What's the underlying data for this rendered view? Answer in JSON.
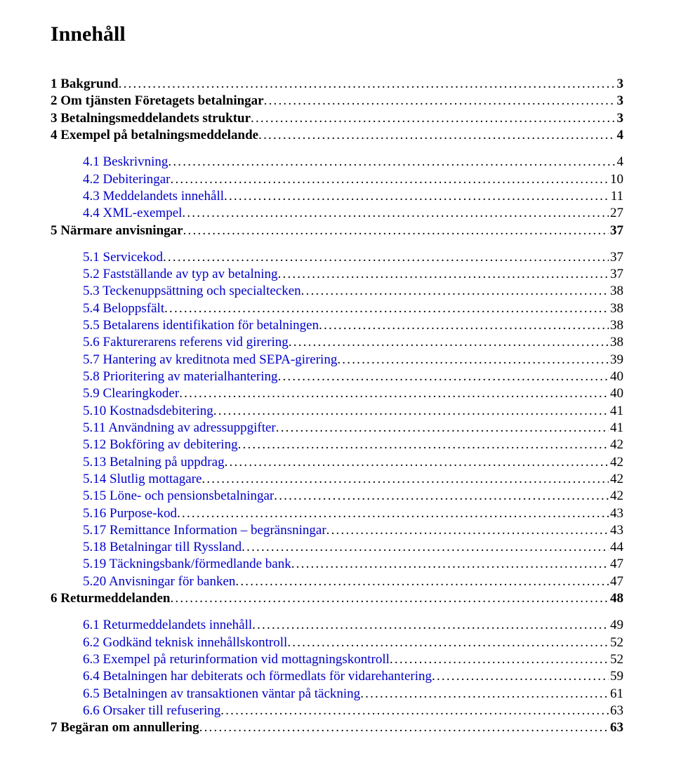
{
  "title": "Innehåll",
  "colors": {
    "background": "#ffffff",
    "text": "#000000",
    "link": "#0000cc"
  },
  "font": {
    "family": "Times New Roman",
    "title_size_pt": 22,
    "body_size_pt": 14
  },
  "toc": [
    {
      "level": 1,
      "bold": true,
      "link": false,
      "gap_before": true,
      "label": "1 Bakgrund",
      "page": "3"
    },
    {
      "level": 1,
      "bold": true,
      "link": false,
      "gap_before": false,
      "label": "2 Om tjänsten Företagets betalningar",
      "page": "3"
    },
    {
      "level": 1,
      "bold": true,
      "link": false,
      "gap_before": false,
      "label": "3 Betalningsmeddelandets struktur",
      "page": "3"
    },
    {
      "level": 1,
      "bold": true,
      "link": false,
      "gap_before": false,
      "label": "4 Exempel på betalningsmeddelande",
      "page": "4"
    },
    {
      "level": 2,
      "bold": false,
      "link": true,
      "gap_before": true,
      "label": "4.1 Beskrivning",
      "page": "4"
    },
    {
      "level": 2,
      "bold": false,
      "link": true,
      "gap_before": false,
      "label": "4.2 Debiteringar",
      "page": "10"
    },
    {
      "level": 2,
      "bold": false,
      "link": true,
      "gap_before": false,
      "label": "4.3 Meddelandets innehåll",
      "page": "11"
    },
    {
      "level": 2,
      "bold": false,
      "link": true,
      "gap_before": false,
      "label": "4.4 XML-exempel",
      "page": "27"
    },
    {
      "level": 1,
      "bold": true,
      "link": false,
      "gap_before": false,
      "label": "5 Närmare anvisningar",
      "page": "37"
    },
    {
      "level": 2,
      "bold": false,
      "link": true,
      "gap_before": true,
      "label": "5.1 Servicekod",
      "page": "37"
    },
    {
      "level": 2,
      "bold": false,
      "link": true,
      "gap_before": false,
      "label": "5.2 Fastställande av typ av betalning",
      "page": "37"
    },
    {
      "level": 2,
      "bold": false,
      "link": true,
      "gap_before": false,
      "label": "5.3 Teckenuppsättning och specialtecken",
      "page": "38"
    },
    {
      "level": 2,
      "bold": false,
      "link": true,
      "gap_before": false,
      "label": "5.4 Beloppsfält",
      "page": "38"
    },
    {
      "level": 2,
      "bold": false,
      "link": true,
      "gap_before": false,
      "label": "5.5 Betalarens identifikation för betalningen",
      "page": "38"
    },
    {
      "level": 2,
      "bold": false,
      "link": true,
      "gap_before": false,
      "label": "5.6 Fakturerarens referens vid girering",
      "page": "38"
    },
    {
      "level": 2,
      "bold": false,
      "link": true,
      "gap_before": false,
      "label": "5.7 Hantering av kreditnota med SEPA-girering",
      "page": "39"
    },
    {
      "level": 2,
      "bold": false,
      "link": true,
      "gap_before": false,
      "label": "5.8 Prioritering av materialhantering",
      "page": "40"
    },
    {
      "level": 2,
      "bold": false,
      "link": true,
      "gap_before": false,
      "label": "5.9 Clearingkoder",
      "page": "40"
    },
    {
      "level": 2,
      "bold": false,
      "link": true,
      "gap_before": false,
      "label": "5.10 Kostnadsdebitering",
      "page": "41"
    },
    {
      "level": 2,
      "bold": false,
      "link": true,
      "gap_before": false,
      "label": "5.11 Användning av adressuppgifter",
      "page": "41"
    },
    {
      "level": 2,
      "bold": false,
      "link": true,
      "gap_before": false,
      "label": "5.12 Bokföring av debitering",
      "page": "42"
    },
    {
      "level": 2,
      "bold": false,
      "link": true,
      "gap_before": false,
      "label": "5.13 Betalning på uppdrag",
      "page": "42"
    },
    {
      "level": 2,
      "bold": false,
      "link": true,
      "gap_before": false,
      "label": "5.14 Slutlig mottagare",
      "page": "42"
    },
    {
      "level": 2,
      "bold": false,
      "link": true,
      "gap_before": false,
      "label": "5.15 Löne- och pensionsbetalningar",
      "page": "42"
    },
    {
      "level": 2,
      "bold": false,
      "link": true,
      "gap_before": false,
      "label": "5.16 Purpose-kod",
      "page": "43"
    },
    {
      "level": 2,
      "bold": false,
      "link": true,
      "gap_before": false,
      "label": "5.17 Remittance Information – begränsningar",
      "page": "43"
    },
    {
      "level": 2,
      "bold": false,
      "link": true,
      "gap_before": false,
      "label": "5.18 Betalningar till Ryssland",
      "page": "44"
    },
    {
      "level": 2,
      "bold": false,
      "link": true,
      "gap_before": false,
      "label": "5.19 Täckningsbank/förmedlande bank",
      "page": "47"
    },
    {
      "level": 2,
      "bold": false,
      "link": true,
      "gap_before": false,
      "label": "5.20 Anvisningar för banken",
      "page": "47"
    },
    {
      "level": 1,
      "bold": true,
      "link": false,
      "gap_before": false,
      "label": "6 Returmeddelanden",
      "page": "48"
    },
    {
      "level": 2,
      "bold": false,
      "link": true,
      "gap_before": true,
      "label": "6.1 Returmeddelandets innehåll",
      "page": "49"
    },
    {
      "level": 2,
      "bold": false,
      "link": true,
      "gap_before": false,
      "label": "6.2 Godkänd teknisk innehållskontroll",
      "page": "52"
    },
    {
      "level": 2,
      "bold": false,
      "link": true,
      "gap_before": false,
      "label": "6.3 Exempel på returinformation vid mottagningskontroll",
      "page": "52"
    },
    {
      "level": 2,
      "bold": false,
      "link": true,
      "gap_before": false,
      "label": "6.4 Betalningen har debiterats och förmedlats för vidarehantering",
      "page": "59"
    },
    {
      "level": 2,
      "bold": false,
      "link": true,
      "gap_before": false,
      "label": "6.5 Betalningen av transaktionen väntar på täckning",
      "page": "61"
    },
    {
      "level": 2,
      "bold": false,
      "link": true,
      "gap_before": false,
      "label": "6.6 Orsaker till refusering",
      "page": "63"
    },
    {
      "level": 1,
      "bold": true,
      "link": false,
      "gap_before": false,
      "label": "7 Begäran om annullering",
      "page": "63"
    }
  ]
}
